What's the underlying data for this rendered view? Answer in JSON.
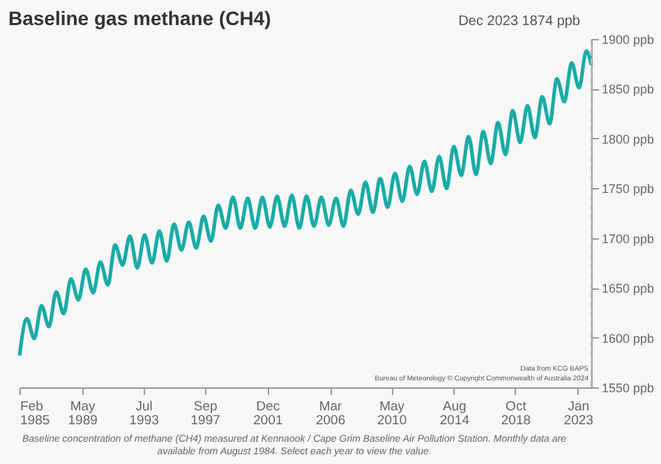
{
  "chart_data": {
    "type": "line",
    "title": "Baseline gas methane (CH4)",
    "x": [
      "1985-02",
      "1985-08",
      "1986-02",
      "1986-08",
      "1987-02",
      "1987-08",
      "1988-02",
      "1988-08",
      "1989-02",
      "1989-08",
      "1990-02",
      "1990-08",
      "1991-02",
      "1991-08",
      "1992-02",
      "1992-08",
      "1993-02",
      "1993-08",
      "1994-02",
      "1994-08",
      "1995-02",
      "1995-08",
      "1996-02",
      "1996-08",
      "1997-02",
      "1997-08",
      "1998-02",
      "1998-08",
      "1999-02",
      "1999-08",
      "2000-02",
      "2000-08",
      "2001-02",
      "2001-08",
      "2002-02",
      "2002-08",
      "2003-02",
      "2003-08",
      "2004-02",
      "2004-08",
      "2005-02",
      "2005-08",
      "2006-02",
      "2006-08",
      "2007-02",
      "2007-08",
      "2008-02",
      "2008-08",
      "2009-02",
      "2009-08",
      "2010-02",
      "2010-08",
      "2011-02",
      "2011-08",
      "2012-02",
      "2012-08",
      "2013-02",
      "2013-08",
      "2014-02",
      "2014-08",
      "2015-02",
      "2015-08",
      "2016-02",
      "2016-08",
      "2017-02",
      "2017-08",
      "2018-02",
      "2018-08",
      "2019-02",
      "2019-08",
      "2020-02",
      "2020-08",
      "2021-02",
      "2021-08",
      "2022-02",
      "2022-08",
      "2023-02",
      "2023-08",
      "2023-12"
    ],
    "series": [
      {
        "color": "#19aca6",
        "values": [
          1582,
          1619,
          1599,
          1632,
          1611,
          1646,
          1624,
          1659,
          1638,
          1669,
          1645,
          1676,
          1653,
          1693,
          1673,
          1702,
          1670,
          1703,
          1675,
          1707,
          1677,
          1714,
          1688,
          1716,
          1690,
          1722,
          1697,
          1733,
          1710,
          1741,
          1710,
          1740,
          1710,
          1741,
          1711,
          1742,
          1712,
          1743,
          1710,
          1742,
          1712,
          1741,
          1713,
          1740,
          1712,
          1748,
          1724,
          1756,
          1726,
          1760,
          1731,
          1765,
          1737,
          1772,
          1744,
          1777,
          1747,
          1782,
          1750,
          1792,
          1763,
          1802,
          1764,
          1807,
          1775,
          1816,
          1784,
          1828,
          1796,
          1833,
          1801,
          1842,
          1815,
          1860,
          1837,
          1876,
          1851,
          1888,
          1874
        ]
      }
    ],
    "xlim": [
      "1985-02",
      "2023-12"
    ],
    "xticks": [
      {
        "value": "1985-02",
        "label": "Feb 1985"
      },
      {
        "value": "1989-05",
        "label": "May 1989"
      },
      {
        "value": "1993-07",
        "label": "Jul 1993"
      },
      {
        "value": "1997-09",
        "label": "Sep 1997"
      },
      {
        "value": "2001-12",
        "label": "Dec 2001"
      },
      {
        "value": "2006-03",
        "label": "Mar 2006"
      },
      {
        "value": "2010-05",
        "label": "May 2010"
      },
      {
        "value": "2014-08",
        "label": "Aug 2014"
      },
      {
        "value": "2018-10",
        "label": "Oct 2018"
      },
      {
        "value": "2023-01",
        "label": "Jan 2023"
      }
    ],
    "ylim": [
      1550,
      1900
    ],
    "yticks": [
      {
        "value": 1550,
        "label": "1550 ppb"
      },
      {
        "value": 1600,
        "label": "1600 ppb"
      },
      {
        "value": 1650,
        "label": "1650 ppb"
      },
      {
        "value": 1700,
        "label": "1700 ppb"
      },
      {
        "value": 1750,
        "label": "1750 ppb"
      },
      {
        "value": 1800,
        "label": "1800 ppb"
      },
      {
        "value": 1850,
        "label": "1850 ppb"
      },
      {
        "value": 1900,
        "label": "1900 ppb"
      }
    ],
    "ref_lines": [
      {
        "axis": "x",
        "value": "2023-12",
        "label": "Dec 2023 1874 ppb",
        "color": "#bbbbbb",
        "line_style": "dashed"
      }
    ],
    "annotations": [
      "Baseline concentration of methane (CH4) measured at Kennaook / Cape Grim Baseline Air Pollution Station. Monthly data are available from August 1984. Select each year to view the value.",
      "Data from KCG BAPS",
      "Bureau of Meteorology © Copyright Commonwealth of Australia 2024"
    ]
  }
}
